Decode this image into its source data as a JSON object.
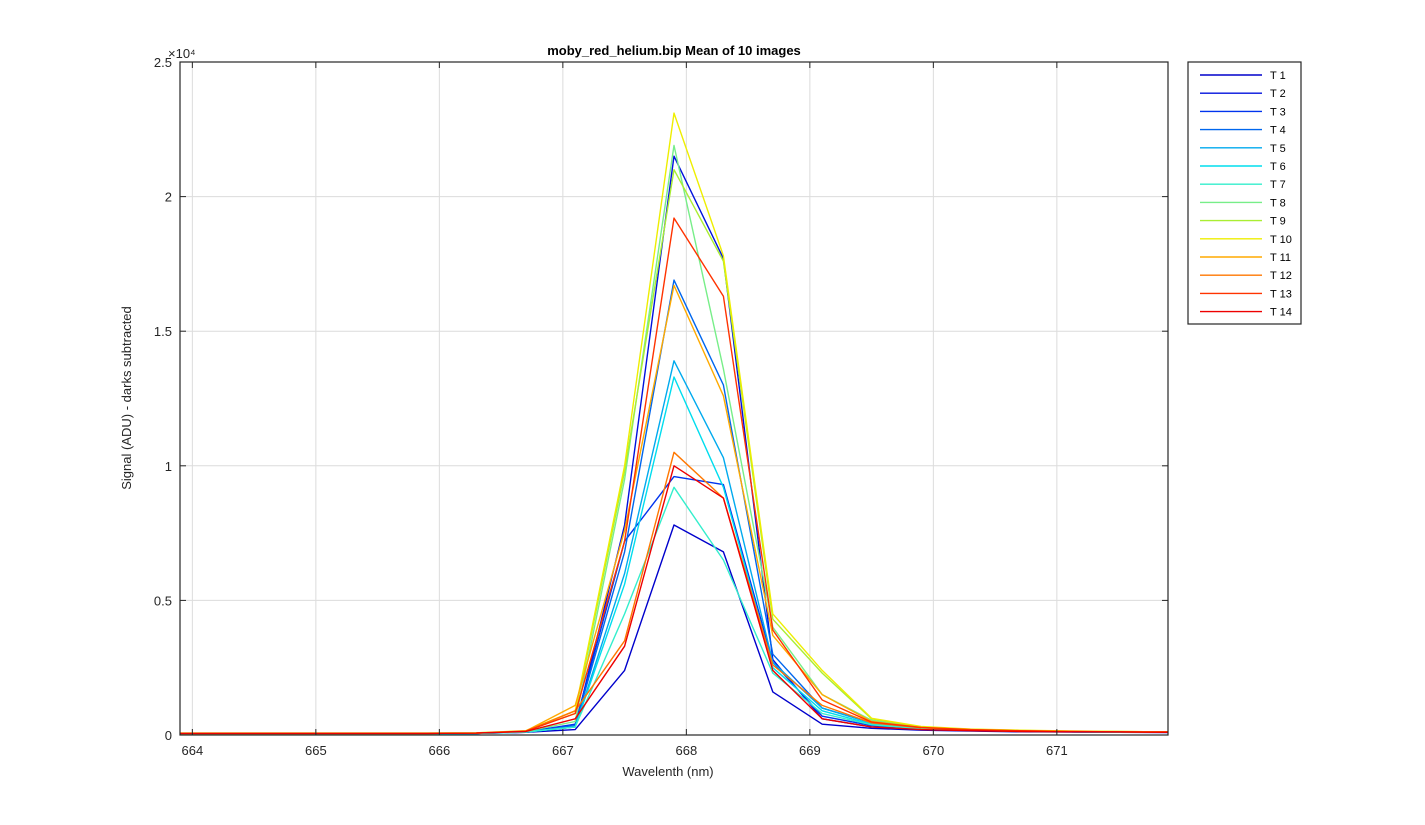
{
  "chart_data": {
    "type": "line",
    "title": "moby_red_helium.bip  Mean of 10 images",
    "xlabel": "Wavelenth (nm)",
    "ylabel": "Signal (ADU) - darks subtracted",
    "y_exponent_label": "×10⁴",
    "xlim": [
      663.9,
      671.9
    ],
    "ylim": [
      0,
      25000
    ],
    "xticks": [
      664,
      665,
      666,
      667,
      668,
      669,
      670,
      671
    ],
    "xtick_labels": [
      "664",
      "665",
      "666",
      "667",
      "668",
      "669",
      "670",
      "671"
    ],
    "yticks": [
      0,
      5000,
      10000,
      15000,
      20000,
      25000
    ],
    "ytick_labels": [
      "0",
      "0.5",
      "1",
      "1.5",
      "2",
      "2.5"
    ],
    "grid": true,
    "legend_position": "outside-top-right",
    "x": [
      663.9,
      664.3,
      664.7,
      665.1,
      665.5,
      665.9,
      666.3,
      666.7,
      667.1,
      667.5,
      667.9,
      668.3,
      668.7,
      669.1,
      669.5,
      669.9,
      670.3,
      670.7,
      671.1,
      671.5,
      671.9
    ],
    "series": [
      {
        "name": "T 1",
        "color": "#0000cc",
        "values": [
          50,
          50,
          50,
          50,
          50,
          50,
          60,
          100,
          200,
          2400,
          7800,
          6800,
          1600,
          400,
          250,
          180,
          150,
          120,
          110,
          100,
          90
        ]
      },
      {
        "name": "T 2",
        "color": "#0011dd",
        "values": [
          50,
          50,
          50,
          50,
          50,
          50,
          60,
          100,
          300,
          7800,
          21500,
          17700,
          2800,
          600,
          300,
          200,
          160,
          130,
          120,
          110,
          100
        ]
      },
      {
        "name": "T 3",
        "color": "#0033ee",
        "values": [
          50,
          50,
          50,
          50,
          50,
          50,
          60,
          120,
          400,
          7200,
          9600,
          9300,
          2700,
          700,
          350,
          220,
          170,
          140,
          120,
          110,
          100
        ]
      },
      {
        "name": "T 4",
        "color": "#0066ee",
        "values": [
          50,
          50,
          50,
          50,
          50,
          50,
          60,
          110,
          350,
          6800,
          16900,
          13000,
          3000,
          1000,
          450,
          250,
          180,
          140,
          120,
          110,
          100
        ]
      },
      {
        "name": "T 5",
        "color": "#00aaee",
        "values": [
          50,
          50,
          50,
          50,
          50,
          50,
          60,
          110,
          300,
          6000,
          13900,
          10300,
          2700,
          1000,
          450,
          250,
          180,
          140,
          120,
          110,
          100
        ]
      },
      {
        "name": "T 6",
        "color": "#00ddee",
        "values": [
          50,
          50,
          50,
          50,
          50,
          50,
          60,
          110,
          300,
          5600,
          13300,
          9200,
          2500,
          900,
          400,
          240,
          180,
          140,
          120,
          110,
          100
        ]
      },
      {
        "name": "T 7",
        "color": "#33eecc",
        "values": [
          50,
          50,
          50,
          50,
          50,
          50,
          60,
          110,
          300,
          4500,
          9200,
          6500,
          2300,
          800,
          380,
          230,
          170,
          140,
          120,
          110,
          100
        ]
      },
      {
        "name": "T 8",
        "color": "#77ee88",
        "values": [
          60,
          60,
          60,
          60,
          60,
          60,
          70,
          130,
          500,
          9500,
          21900,
          13600,
          4000,
          1500,
          550,
          290,
          200,
          160,
          130,
          120,
          110
        ]
      },
      {
        "name": "T 9",
        "color": "#aaee33",
        "values": [
          70,
          70,
          70,
          70,
          70,
          70,
          80,
          150,
          800,
          9800,
          21000,
          17600,
          4300,
          2300,
          600,
          300,
          210,
          170,
          140,
          130,
          120
        ]
      },
      {
        "name": "T 10",
        "color": "#eeee00",
        "values": [
          70,
          70,
          70,
          70,
          70,
          70,
          80,
          160,
          900,
          10000,
          23100,
          17800,
          4500,
          2400,
          620,
          320,
          220,
          180,
          150,
          130,
          120
        ]
      },
      {
        "name": "T 11",
        "color": "#ffaa00",
        "values": [
          60,
          60,
          60,
          60,
          60,
          60,
          70,
          150,
          1100,
          7600,
          16700,
          12600,
          3700,
          1500,
          500,
          280,
          200,
          160,
          130,
          120,
          110
        ]
      },
      {
        "name": "T 12",
        "color": "#ff7700",
        "values": [
          60,
          60,
          60,
          60,
          60,
          60,
          70,
          140,
          900,
          3500,
          10500,
          8800,
          2600,
          1100,
          450,
          270,
          190,
          150,
          130,
          120,
          110
        ]
      },
      {
        "name": "T 13",
        "color": "#ff3300",
        "values": [
          60,
          60,
          60,
          60,
          60,
          60,
          70,
          140,
          800,
          7200,
          19200,
          16300,
          3900,
          1300,
          480,
          280,
          200,
          160,
          130,
          120,
          110
        ]
      },
      {
        "name": "T 14",
        "color": "#ee0000",
        "values": [
          60,
          60,
          60,
          60,
          60,
          60,
          70,
          130,
          600,
          3300,
          10000,
          8800,
          2400,
          600,
          300,
          200,
          160,
          130,
          120,
          110,
          100
        ]
      }
    ]
  }
}
